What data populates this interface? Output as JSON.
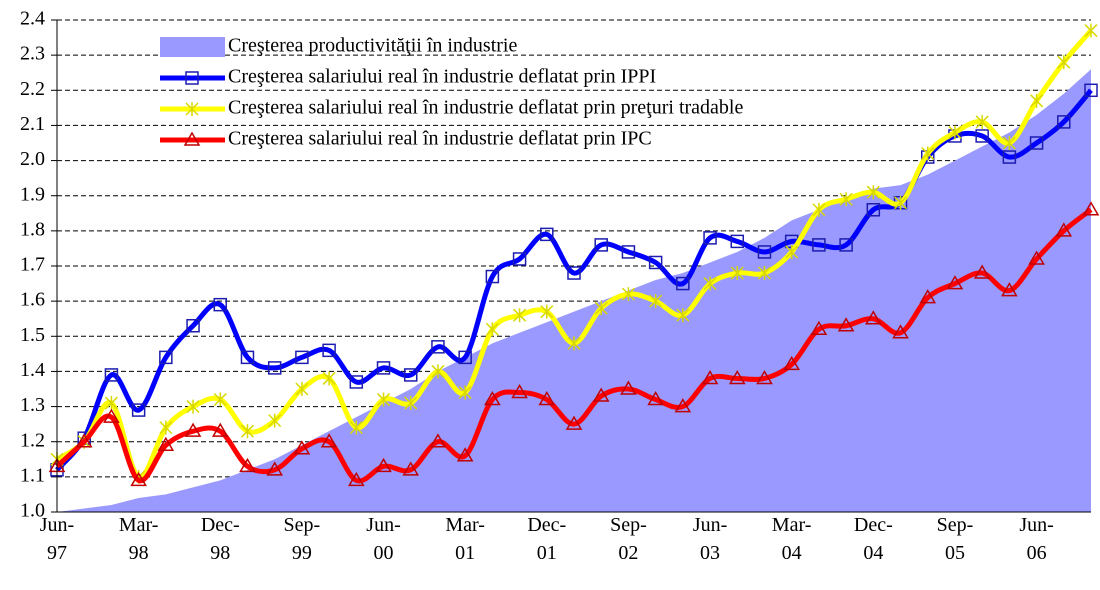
{
  "chart_data": {
    "type": "line",
    "categories": [
      "Jun-97",
      null,
      null,
      "Mar-98",
      null,
      null,
      "Dec-98",
      null,
      null,
      "Sep-99",
      null,
      null,
      "Jun-00",
      null,
      null,
      "Mar-01",
      null,
      null,
      "Dec-01",
      null,
      null,
      "Sep-02",
      null,
      null,
      "Jun-03",
      null,
      null,
      "Mar-04",
      null,
      null,
      "Dec-04",
      null,
      null,
      "Sep-05",
      null,
      null,
      "Jun-06",
      null,
      null
    ],
    "series": [
      {
        "name": "Creşterea productivităţii în industrie",
        "kind": "area",
        "color": "#9999ff",
        "values": [
          1.0,
          1.01,
          1.02,
          1.04,
          1.05,
          1.07,
          1.09,
          1.12,
          1.15,
          1.19,
          1.23,
          1.27,
          1.31,
          1.35,
          1.4,
          1.44,
          1.48,
          1.51,
          1.54,
          1.57,
          1.6,
          1.63,
          1.66,
          1.68,
          1.71,
          1.74,
          1.78,
          1.83,
          1.86,
          1.89,
          1.92,
          1.93,
          1.96,
          2.0,
          2.04,
          2.08,
          2.13,
          2.19,
          2.26
        ]
      },
      {
        "name": "Creşterea salariului real în industrie deflatat prin IPPI",
        "kind": "line",
        "marker": "square",
        "color": "#0000ff",
        "values": [
          1.12,
          1.21,
          1.39,
          1.29,
          1.44,
          1.53,
          1.59,
          1.44,
          1.41,
          1.44,
          1.46,
          1.37,
          1.41,
          1.39,
          1.47,
          1.44,
          1.67,
          1.72,
          1.79,
          1.68,
          1.76,
          1.74,
          1.71,
          1.65,
          1.78,
          1.77,
          1.74,
          1.77,
          1.76,
          1.76,
          1.86,
          1.88,
          2.01,
          2.07,
          2.07,
          2.01,
          2.05,
          2.11,
          2.2
        ]
      },
      {
        "name": "Creşterea salariului real în industrie deflatat prin preţuri tradable",
        "kind": "line",
        "marker": "star",
        "color": "#ffff00",
        "values": [
          1.15,
          1.2,
          1.31,
          1.1,
          1.24,
          1.3,
          1.32,
          1.23,
          1.26,
          1.35,
          1.38,
          1.24,
          1.32,
          1.31,
          1.4,
          1.34,
          1.52,
          1.56,
          1.57,
          1.48,
          1.58,
          1.62,
          1.6,
          1.56,
          1.65,
          1.68,
          1.68,
          1.74,
          1.86,
          1.89,
          1.91,
          1.88,
          2.02,
          2.08,
          2.11,
          2.05,
          2.17,
          2.28,
          2.37
        ]
      },
      {
        "name": "Creşterea salariului real în industrie deflatat prin IPC",
        "kind": "line",
        "marker": "triangle",
        "color": "#ff0000",
        "values": [
          1.13,
          1.2,
          1.27,
          1.09,
          1.19,
          1.23,
          1.23,
          1.13,
          1.12,
          1.18,
          1.2,
          1.09,
          1.13,
          1.12,
          1.2,
          1.16,
          1.32,
          1.34,
          1.32,
          1.25,
          1.33,
          1.35,
          1.32,
          1.3,
          1.38,
          1.38,
          1.38,
          1.42,
          1.52,
          1.53,
          1.55,
          1.51,
          1.61,
          1.65,
          1.68,
          1.63,
          1.72,
          1.8,
          1.86
        ]
      }
    ],
    "ylim": [
      1.0,
      2.4
    ],
    "yticks": [
      {
        "value": 1.0,
        "label": "1.0"
      },
      1.1,
      1.2,
      1.3,
      1.4,
      1.5,
      1.6,
      1.7,
      1.8,
      1.9,
      {
        "value": 2.0,
        "label": "2.0"
      },
      2.1,
      2.2,
      2.3,
      2.4
    ],
    "grid": true,
    "legend": "upper left"
  }
}
